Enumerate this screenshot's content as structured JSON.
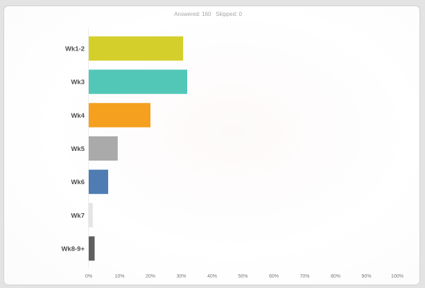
{
  "colors": {
    "page_background": "#e3e3e3",
    "card_border": "#d2d2d2",
    "axis_line": "#ececec",
    "title_text": "#a6a6a6",
    "category_text": "#4f4f4f",
    "tick_text": "#7a7a7a"
  },
  "chart_data": {
    "type": "bar",
    "orientation": "horizontal",
    "title": "Answered: 160   Skipped: 0",
    "categories": [
      "Wk1-2",
      "Wk3",
      "Wk4",
      "Wk5",
      "Wk6",
      "Wk7",
      "Wk8-9+"
    ],
    "values": [
      30.6,
      31.9,
      20.0,
      9.4,
      6.3,
      1.3,
      1.9
    ],
    "bar_colors": [
      "#d5cf2c",
      "#52c7b8",
      "#f5a01e",
      "#a9aaa9",
      "#4f7db3",
      "#e3e5e6",
      "#5e6060"
    ],
    "xlim": [
      0,
      100
    ],
    "xticks": [
      0,
      10,
      20,
      30,
      40,
      50,
      60,
      70,
      80,
      90,
      100
    ],
    "xtick_labels": [
      "0%",
      "10%",
      "20%",
      "30%",
      "40%",
      "50%",
      "60%",
      "70%",
      "80%",
      "90%",
      "100%"
    ],
    "grid": false,
    "legend": "none"
  }
}
